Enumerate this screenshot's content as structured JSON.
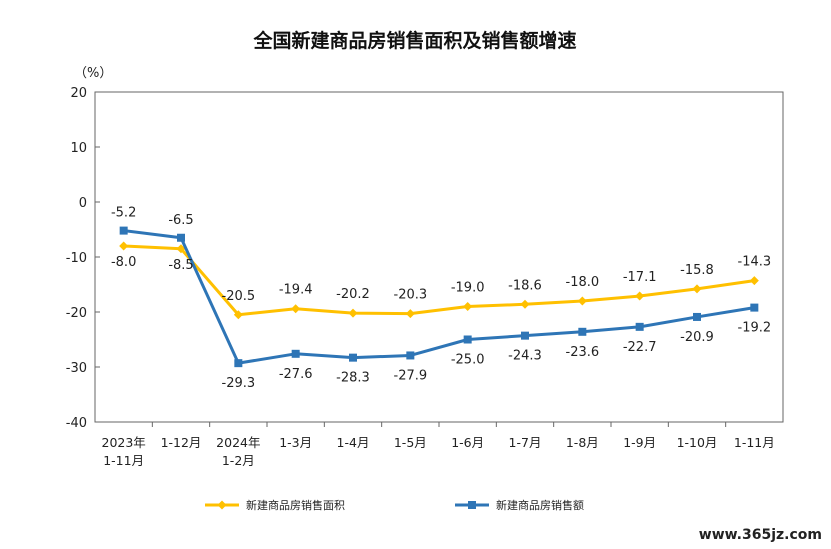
{
  "chart_data": {
    "type": "line",
    "title": "全国新建商品房销售面积及销售额增速",
    "ylabel": "（%）",
    "xlabel": "",
    "ylim": [
      -40,
      20
    ],
    "yticks": [
      20,
      10,
      0,
      -10,
      -20,
      -30,
      -40
    ],
    "categories": [
      [
        "2023年",
        "1-11月"
      ],
      [
        "1-12月"
      ],
      [
        "2024年",
        "1-2月"
      ],
      [
        "1-3月"
      ],
      [
        "1-4月"
      ],
      [
        "1-5月"
      ],
      [
        "1-6月"
      ],
      [
        "1-7月"
      ],
      [
        "1-8月"
      ],
      [
        "1-9月"
      ],
      [
        "1-10月"
      ],
      [
        "1-11月"
      ]
    ],
    "series": [
      {
        "name": "新建商品房销售面积",
        "color": "#FFC000",
        "marker": "diamond",
        "values": [
          -8.0,
          -8.5,
          -20.5,
          -19.4,
          -20.2,
          -20.3,
          -19.0,
          -18.6,
          -18.0,
          -17.1,
          -15.8,
          -14.3
        ],
        "labels": [
          "-8.0",
          "-8.5",
          "-20.5",
          "-19.4",
          "-20.2",
          "-20.3",
          "-19.0",
          "-18.6",
          "-18.0",
          "-17.1",
          "-15.8",
          "-14.3"
        ]
      },
      {
        "name": "新建商品房销售额",
        "color": "#2E75B6",
        "marker": "square",
        "values": [
          -5.2,
          -6.5,
          -29.3,
          -27.6,
          -28.3,
          -27.9,
          -25.0,
          -24.3,
          -23.6,
          -22.7,
          -20.9,
          -19.2
        ],
        "labels": [
          "-5.2",
          "-6.5",
          "-29.3",
          "-27.6",
          "-28.3",
          "-27.9",
          "-25.0",
          "-24.3",
          "-23.6",
          "-22.7",
          "-20.9",
          "-19.2"
        ]
      }
    ],
    "grid": false,
    "legend_position": "bottom"
  },
  "watermark": "www.365jz.com"
}
